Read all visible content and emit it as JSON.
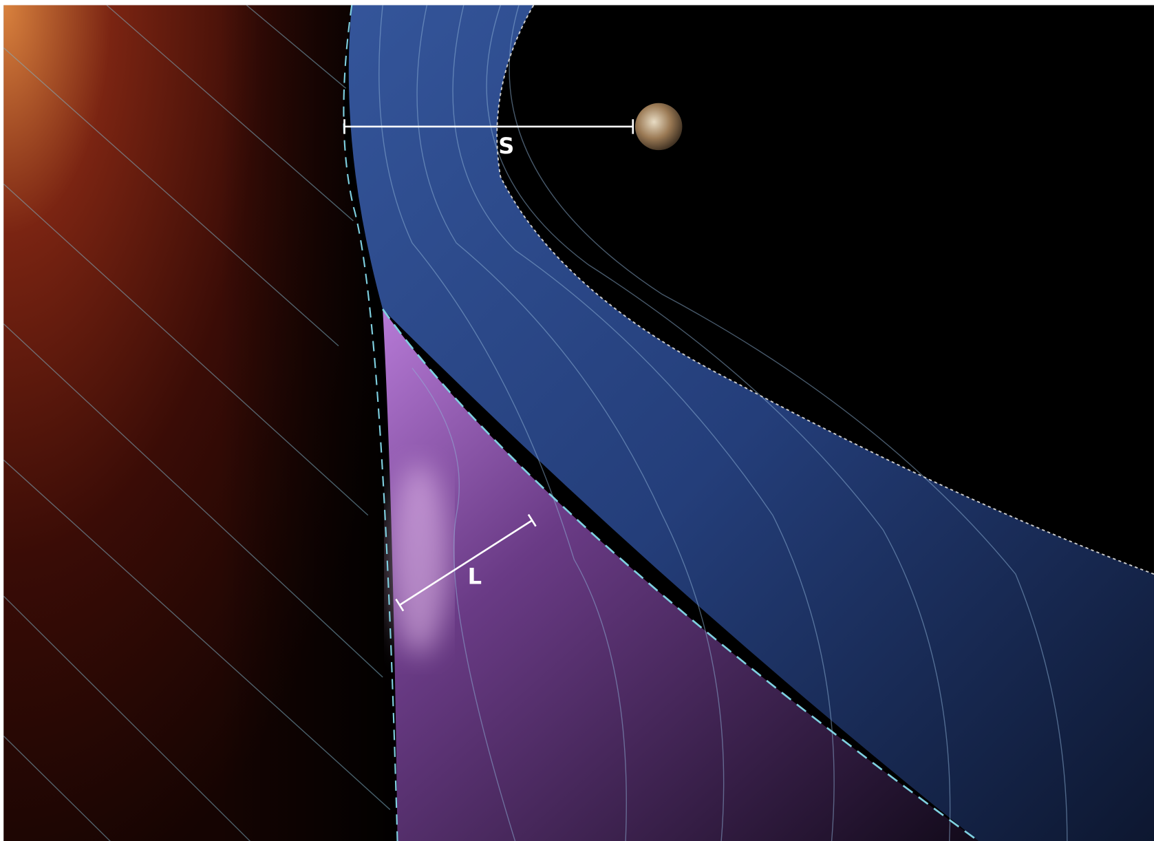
{
  "labels": {
    "s": "S",
    "l": "L"
  }
}
